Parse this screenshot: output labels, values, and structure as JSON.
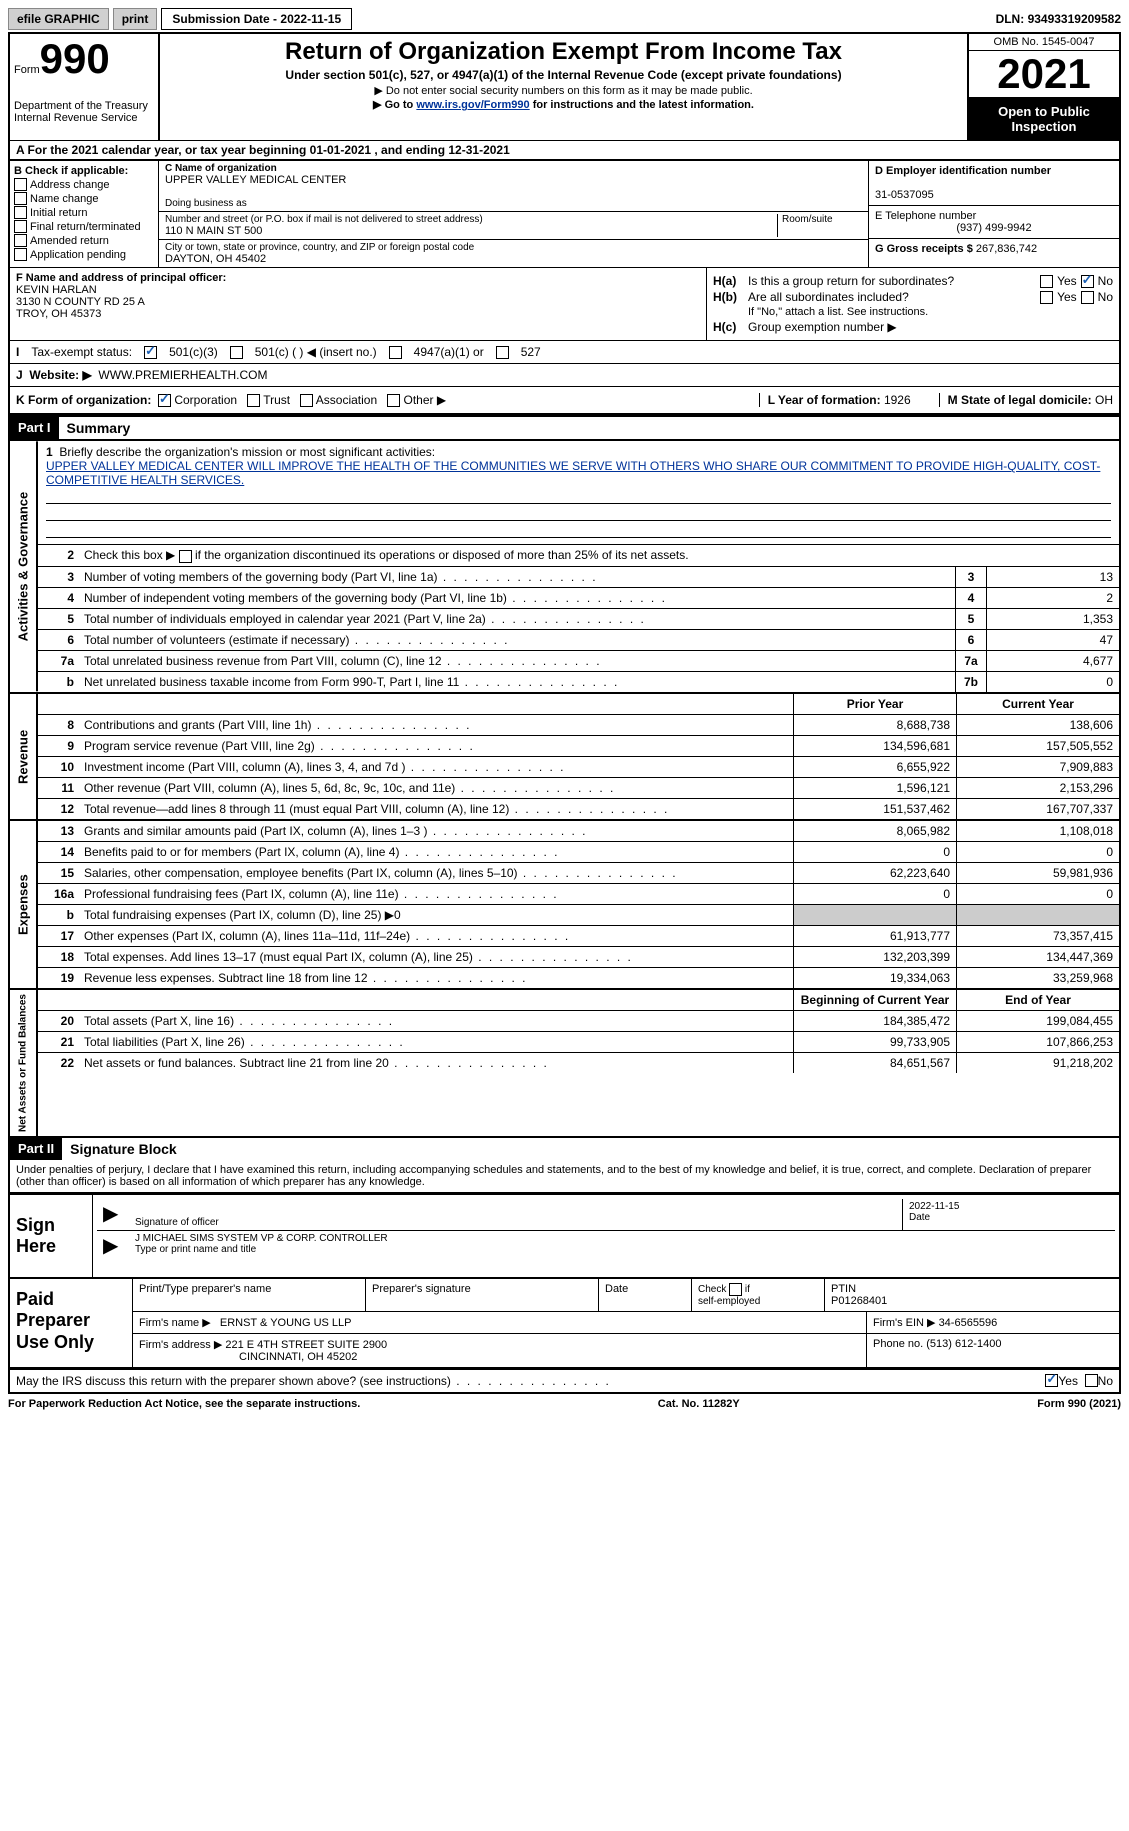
{
  "topbar": {
    "efile": "efile GRAPHIC",
    "print": "print",
    "submission_label": "Submission Date - ",
    "submission_date": "2022-11-15",
    "dln_label": "DLN: ",
    "dln": "93493319209582"
  },
  "header": {
    "form_word": "Form",
    "form_num": "990",
    "dept": "Department of the Treasury",
    "irs": "Internal Revenue Service",
    "title": "Return of Organization Exempt From Income Tax",
    "sub1": "Under section 501(c), 527, or 4947(a)(1) of the Internal Revenue Code (except private foundations)",
    "sub2": "▶ Do not enter social security numbers on this form as it may be made public.",
    "sub3_pre": "▶ Go to ",
    "sub3_link": "www.irs.gov/Form990",
    "sub3_post": " for instructions and the latest information.",
    "omb": "OMB No. 1545-0047",
    "year": "2021",
    "open": "Open to Public Inspection"
  },
  "lineA": "A For the 2021 calendar year, or tax year beginning 01-01-2021   , and ending 12-31-2021",
  "colB": {
    "header": "B Check if applicable:",
    "items": [
      "Address change",
      "Name change",
      "Initial return",
      "Final return/terminated",
      "Amended return",
      "Application pending"
    ]
  },
  "colC": {
    "name_label": "C Name of organization",
    "name": "UPPER VALLEY MEDICAL CENTER",
    "dba_label": "Doing business as",
    "street_label": "Number and street (or P.O. box if mail is not delivered to street address)",
    "street": "110 N MAIN ST 500",
    "room_label": "Room/suite",
    "city_label": "City or town, state or province, country, and ZIP or foreign postal code",
    "city": "DAYTON, OH  45402"
  },
  "colDE": {
    "d_label": "D Employer identification number",
    "ein": "31-0537095",
    "e_label": "E Telephone number",
    "phone": "(937) 499-9942",
    "g_label": "G Gross receipts $ ",
    "gross": "267,836,742"
  },
  "rowF": {
    "label": "F  Name and address of principal officer:",
    "name": "KEVIN HARLAN",
    "addr1": "3130 N COUNTY RD 25 A",
    "addr2": "TROY, OH  45373"
  },
  "rowH": {
    "ha": "Is this a group return for subordinates?",
    "hb": "Are all subordinates included?",
    "hb_note": "If \"No,\" attach a list. See instructions.",
    "hc": "Group exemption number ▶"
  },
  "rowI": {
    "label": "Tax-exempt status:",
    "opt1": "501(c)(3)",
    "opt2": "501(c) (   ) ◀ (insert no.)",
    "opt3": "4947(a)(1) or",
    "opt4": "527"
  },
  "rowJ": {
    "label": "Website: ▶",
    "value": "WWW.PREMIERHEALTH.COM"
  },
  "rowK": {
    "label": "K Form of organization:",
    "opts": [
      "Corporation",
      "Trust",
      "Association",
      "Other ▶"
    ]
  },
  "rowL": {
    "label": "L Year of formation: ",
    "val": "1926"
  },
  "rowM": {
    "label": "M State of legal domicile: ",
    "val": "OH"
  },
  "part1": {
    "num": "Part I",
    "title": "Summary"
  },
  "mission": {
    "label": "Briefly describe the organization's mission or most significant activities:",
    "text": "UPPER VALLEY MEDICAL CENTER WILL IMPROVE THE HEALTH OF THE COMMUNITIES WE SERVE WITH OTHERS WHO SHARE OUR COMMITMENT TO PROVIDE HIGH-QUALITY, COST-COMPETITIVE HEALTH SERVICES."
  },
  "line2": "Check this box ▶  if the organization discontinued its operations or disposed of more than 25% of its net assets.",
  "governance": [
    {
      "n": "3",
      "t": "Number of voting members of the governing body (Part VI, line 1a)",
      "b": "3",
      "v": "13"
    },
    {
      "n": "4",
      "t": "Number of independent voting members of the governing body (Part VI, line 1b)",
      "b": "4",
      "v": "2"
    },
    {
      "n": "5",
      "t": "Total number of individuals employed in calendar year 2021 (Part V, line 2a)",
      "b": "5",
      "v": "1,353"
    },
    {
      "n": "6",
      "t": "Total number of volunteers (estimate if necessary)",
      "b": "6",
      "v": "47"
    },
    {
      "n": "7a",
      "t": "Total unrelated business revenue from Part VIII, column (C), line 12",
      "b": "7a",
      "v": "4,677"
    },
    {
      "n": "b",
      "t": "Net unrelated business taxable income from Form 990-T, Part I, line 11",
      "b": "7b",
      "v": "0"
    }
  ],
  "col_headers": {
    "prior": "Prior Year",
    "current": "Current Year",
    "begin": "Beginning of Current Year",
    "end": "End of Year"
  },
  "revenue": [
    {
      "n": "8",
      "t": "Contributions and grants (Part VIII, line 1h)",
      "p": "8,688,738",
      "c": "138,606"
    },
    {
      "n": "9",
      "t": "Program service revenue (Part VIII, line 2g)",
      "p": "134,596,681",
      "c": "157,505,552"
    },
    {
      "n": "10",
      "t": "Investment income (Part VIII, column (A), lines 3, 4, and 7d )",
      "p": "6,655,922",
      "c": "7,909,883"
    },
    {
      "n": "11",
      "t": "Other revenue (Part VIII, column (A), lines 5, 6d, 8c, 9c, 10c, and 11e)",
      "p": "1,596,121",
      "c": "2,153,296"
    },
    {
      "n": "12",
      "t": "Total revenue—add lines 8 through 11 (must equal Part VIII, column (A), line 12)",
      "p": "151,537,462",
      "c": "167,707,337"
    }
  ],
  "expenses": [
    {
      "n": "13",
      "t": "Grants and similar amounts paid (Part IX, column (A), lines 1–3 )",
      "p": "8,065,982",
      "c": "1,108,018"
    },
    {
      "n": "14",
      "t": "Benefits paid to or for members (Part IX, column (A), line 4)",
      "p": "0",
      "c": "0"
    },
    {
      "n": "15",
      "t": "Salaries, other compensation, employee benefits (Part IX, column (A), lines 5–10)",
      "p": "62,223,640",
      "c": "59,981,936"
    },
    {
      "n": "16a",
      "t": "Professional fundraising fees (Part IX, column (A), line 11e)",
      "p": "0",
      "c": "0"
    },
    {
      "n": "b",
      "t": "Total fundraising expenses (Part IX, column (D), line 25) ▶0",
      "p": "",
      "c": "",
      "shaded": true
    },
    {
      "n": "17",
      "t": "Other expenses (Part IX, column (A), lines 11a–11d, 11f–24e)",
      "p": "61,913,777",
      "c": "73,357,415"
    },
    {
      "n": "18",
      "t": "Total expenses. Add lines 13–17 (must equal Part IX, column (A), line 25)",
      "p": "132,203,399",
      "c": "134,447,369"
    },
    {
      "n": "19",
      "t": "Revenue less expenses. Subtract line 18 from line 12",
      "p": "19,334,063",
      "c": "33,259,968"
    }
  ],
  "netassets": [
    {
      "n": "20",
      "t": "Total assets (Part X, line 16)",
      "p": "184,385,472",
      "c": "199,084,455"
    },
    {
      "n": "21",
      "t": "Total liabilities (Part X, line 26)",
      "p": "99,733,905",
      "c": "107,866,253"
    },
    {
      "n": "22",
      "t": "Net assets or fund balances. Subtract line 21 from line 20",
      "p": "84,651,567",
      "c": "91,218,202"
    }
  ],
  "part2": {
    "num": "Part II",
    "title": "Signature Block"
  },
  "penalty": "Under penalties of perjury, I declare that I have examined this return, including accompanying schedules and statements, and to the best of my knowledge and belief, it is true, correct, and complete. Declaration of preparer (other than officer) is based on all information of which preparer has any knowledge.",
  "sign": {
    "label": "Sign Here",
    "sig_label": "Signature of officer",
    "date": "2022-11-15",
    "date_label": "Date",
    "name": "J MICHAEL SIMS  SYSTEM VP & CORP. CONTROLLER",
    "name_label": "Type or print name and title"
  },
  "paid": {
    "label": "Paid Preparer Use Only",
    "r1": {
      "c1": "Print/Type preparer's name",
      "c2": "Preparer's signature",
      "c3": "Date",
      "c4_pre": "Check         if self-employed",
      "c5_label": "PTIN",
      "c5": "P01268401"
    },
    "r2": {
      "label": "Firm's name    ▶",
      "val": "ERNST & YOUNG US LLP",
      "ein_label": "Firm's EIN ▶",
      "ein": "34-6565596"
    },
    "r3": {
      "label": "Firm's address ▶",
      "val1": "221 E 4TH STREET SUITE 2900",
      "val2": "CINCINNATI, OH  45202",
      "phone_label": "Phone no. ",
      "phone": "(513) 612-1400"
    }
  },
  "discuss": "May the IRS discuss this return with the preparer shown above? (see instructions)",
  "footer": {
    "left": "For Paperwork Reduction Act Notice, see the separate instructions.",
    "mid": "Cat. No. 11282Y",
    "right": "Form 990 (2021)"
  },
  "vtabs": {
    "gov": "Activities & Governance",
    "rev": "Revenue",
    "exp": "Expenses",
    "net": "Net Assets or Fund Balances"
  }
}
